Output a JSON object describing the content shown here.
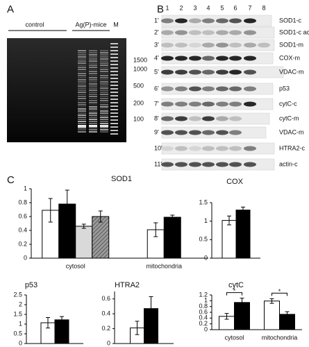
{
  "panels": {
    "A": {
      "label": "A",
      "lanes": [
        "control",
        "Ag(P)-mice",
        "M"
      ],
      "markers": [
        "1500",
        "1000",
        "500",
        "200",
        "100"
      ]
    },
    "B": {
      "label": "B",
      "lanes": [
        "1",
        "2",
        "3",
        "4",
        "5",
        "6",
        "7",
        "8"
      ],
      "rows": [
        {
          "id": "1'",
          "label": "SOD1-c"
        },
        {
          "id": "2'",
          "label": "SOD1-c  act."
        },
        {
          "id": "3'",
          "label": "SOD1-m"
        },
        {
          "id": "4'",
          "label": "COX-m"
        },
        {
          "id": "5'",
          "label": "VDAC-m"
        },
        {
          "id": "6'",
          "label": "p53"
        },
        {
          "id": "7'",
          "label": "cytC-c"
        },
        {
          "id": "8'",
          "label": "cytC-m"
        },
        {
          "id": "9'",
          "label": "VDAC-m"
        },
        {
          "id": "10'",
          "label": "HTRA2-c"
        },
        {
          "id": "11'",
          "label": "actin-c"
        }
      ]
    },
    "C": {
      "label": "C"
    }
  },
  "chart_data": [
    {
      "type": "bar",
      "title": "SOD1",
      "categories": [
        "cytosol",
        "mitochondria"
      ],
      "series": [
        {
          "color": "#ffffff",
          "values": [
            0.69,
            0.41
          ],
          "errors": [
            0.17,
            0.1
          ]
        },
        {
          "color": "#000000",
          "values": [
            0.78,
            0.59
          ],
          "errors": [
            0.2,
            0.03
          ]
        },
        {
          "color": "#d9d9d9",
          "values": [
            0.46,
            null
          ],
          "errors": [
            0.03,
            null
          ]
        },
        {
          "color": "#8a8a8a",
          "pattern": "hatch",
          "values": [
            0.6,
            null
          ],
          "errors": [
            0.08,
            null
          ]
        }
      ],
      "ylim": [
        0,
        1
      ],
      "yticks": [
        0,
        0.2,
        0.4,
        0.6,
        0.8,
        1
      ]
    },
    {
      "type": "bar",
      "title": "COX",
      "series": [
        {
          "color": "#ffffff",
          "values": [
            1.02
          ],
          "errors": [
            0.12
          ]
        },
        {
          "color": "#000000",
          "values": [
            1.3
          ],
          "errors": [
            0.08
          ]
        }
      ],
      "ylim": [
        0,
        1.5
      ],
      "yticks": [
        0,
        0.5,
        1,
        1.5
      ]
    },
    {
      "type": "bar",
      "title": "p53",
      "series": [
        {
          "color": "#ffffff",
          "values": [
            1.07
          ],
          "errors": [
            0.27
          ]
        },
        {
          "color": "#000000",
          "values": [
            1.22
          ],
          "errors": [
            0.17
          ]
        }
      ],
      "ylim": [
        0,
        2.5
      ],
      "yticks": [
        0,
        0.5,
        1,
        1.5,
        2,
        2.5
      ]
    },
    {
      "type": "bar",
      "title": "HTRA2",
      "series": [
        {
          "color": "#ffffff",
          "values": [
            0.21
          ],
          "errors": [
            0.09
          ]
        },
        {
          "color": "#000000",
          "values": [
            0.47
          ],
          "errors": [
            0.16
          ]
        }
      ],
      "ylim": [
        0,
        0.7
      ],
      "yticks": [
        0,
        0.2,
        0.4,
        0.6
      ]
    },
    {
      "type": "bar",
      "title": "cytC",
      "categories": [
        "cytosol",
        "mitochondria"
      ],
      "series": [
        {
          "color": "#ffffff",
          "values": [
            0.46,
            0.99
          ],
          "errors": [
            0.1,
            0.08
          ]
        },
        {
          "color": "#000000",
          "values": [
            0.94,
            0.53
          ],
          "errors": [
            0.15,
            0.09
          ]
        }
      ],
      "ylim": [
        0,
        1.2
      ],
      "yticks": [
        0,
        0.2,
        0.4,
        0.6,
        0.8,
        1,
        1.2
      ],
      "annotations": [
        "*",
        "*"
      ]
    }
  ]
}
